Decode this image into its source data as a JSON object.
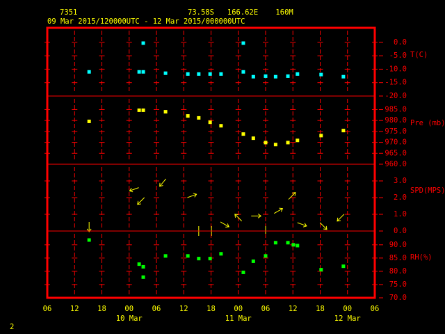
{
  "header": {
    "station": "7351",
    "location": "73.58S   166.62E    160M",
    "period": "09 Mar 2015/120000UTC - 12 Mar 2015/000000UTC",
    "page": "2"
  },
  "x_axis": {
    "xlim": [
      0,
      72
    ],
    "xticks": [
      {
        "value": 0,
        "label": "06"
      },
      {
        "value": 6,
        "label": "12"
      },
      {
        "value": 12,
        "label": "18"
      },
      {
        "value": 18,
        "label": "00"
      },
      {
        "value": 24,
        "label": "06"
      },
      {
        "value": 30,
        "label": "12"
      },
      {
        "value": 36,
        "label": "18"
      },
      {
        "value": 42,
        "label": "00"
      },
      {
        "value": 48,
        "label": "06"
      },
      {
        "value": 54,
        "label": "12"
      },
      {
        "value": 60,
        "label": "18"
      },
      {
        "value": 66,
        "label": "00"
      },
      {
        "value": 72,
        "label": "06"
      }
    ],
    "day_labels": [
      {
        "value": 18,
        "label": "10 Mar"
      },
      {
        "value": 42,
        "label": "11 Mar"
      },
      {
        "value": 66,
        "label": "12 Mar"
      }
    ]
  },
  "chart_data": [
    {
      "type": "scatter",
      "y_label": "T(C)",
      "color": "#00ffff",
      "ylim": [
        -20,
        5.4
      ],
      "yticks": [
        {
          "value": 0,
          "label": "0.0"
        },
        {
          "value": -5,
          "label": "-5.0"
        },
        {
          "value": -10,
          "label": "-10.0"
        },
        {
          "value": -15,
          "label": "-15.0"
        },
        {
          "value": -20,
          "label": "-20.0"
        }
      ],
      "x": [
        9.2,
        20.2,
        21.1,
        21.1,
        26,
        30.9,
        33.3,
        35.8,
        38.2,
        43.1,
        43.1,
        45.3,
        48,
        50.2,
        52.9,
        55,
        60.2,
        65.1
      ],
      "values": [
        -11,
        -11,
        -11,
        -0.3,
        -11.5,
        -11.8,
        -11.8,
        -11.8,
        -11.8,
        -0.3,
        -11,
        -12.8,
        -12.6,
        -12.8,
        -12.6,
        -11.8,
        -12,
        -12.8
      ]
    },
    {
      "type": "scatter",
      "y_label": "Pre (mb)",
      "color": "#ffff00",
      "ylim": [
        960,
        991.2
      ],
      "yticks": [
        {
          "value": 985,
          "label": "985.0"
        },
        {
          "value": 980,
          "label": "980.0"
        },
        {
          "value": 975,
          "label": "975.0"
        },
        {
          "value": 970,
          "label": "970.0"
        },
        {
          "value": 965,
          "label": "965.0"
        },
        {
          "value": 960,
          "label": "960.0"
        }
      ],
      "x": [
        9.2,
        20.2,
        21.1,
        26,
        30.9,
        33.3,
        35.8,
        38.2,
        43.1,
        45.3,
        48,
        50.2,
        52.9,
        55,
        60.2,
        65.1
      ],
      "values": [
        979.6,
        984.7,
        984.7,
        984,
        982.1,
        981.2,
        979.2,
        977.6,
        973.8,
        971.9,
        969.9,
        969,
        969.9,
        970.9,
        973.1,
        975.4
      ]
    },
    {
      "type": "vector",
      "y_label": "SPD(MPS)",
      "color": "#ffff00",
      "ylim": [
        0,
        4
      ],
      "yticks": [
        {
          "value": 3,
          "label": "3.0"
        },
        {
          "value": 2,
          "label": "2.0"
        },
        {
          "value": 1,
          "label": "1.0"
        },
        {
          "value": 0,
          "label": "0.0"
        }
      ],
      "x": [
        9.2,
        19.1,
        20.6,
        25.4,
        31.8,
        33.3,
        36.1,
        39,
        42,
        45.9,
        48,
        50.8,
        53.8,
        56,
        60.7,
        64.5
      ],
      "values": [
        0.25,
        2.5,
        1.8,
        2.9,
        2.1,
        0,
        0,
        0.4,
        0.8,
        0.9,
        0,
        1.2,
        2.1,
        0.4,
        0.3,
        0.8
      ],
      "direction": [
        180,
        250,
        225,
        220,
        70,
        0,
        0,
        120,
        315,
        90,
        0,
        60,
        45,
        110,
        135,
        225
      ]
    },
    {
      "type": "scatter",
      "y_label": "RH(%)",
      "color": "#00ff00",
      "ylim": [
        70,
        95.2
      ],
      "yticks": [
        {
          "value": 90,
          "label": "90.0"
        },
        {
          "value": 85,
          "label": "85.0"
        },
        {
          "value": 80,
          "label": "80.0"
        },
        {
          "value": 75,
          "label": "75.0"
        },
        {
          "value": 70,
          "label": "70.0"
        }
      ],
      "x": [
        9.2,
        20.2,
        21.1,
        21.1,
        26,
        30.9,
        33.3,
        35.8,
        38.2,
        43.1,
        45.3,
        48,
        50.2,
        52.9,
        54.1,
        55,
        60.2,
        65.1
      ],
      "values": [
        91.8,
        82.7,
        81.7,
        77.8,
        85.8,
        85.8,
        84.8,
        84.8,
        86.6,
        79.6,
        83.8,
        85.8,
        90.8,
        90.8,
        90,
        89.7,
        80.6,
        81.9
      ]
    }
  ]
}
